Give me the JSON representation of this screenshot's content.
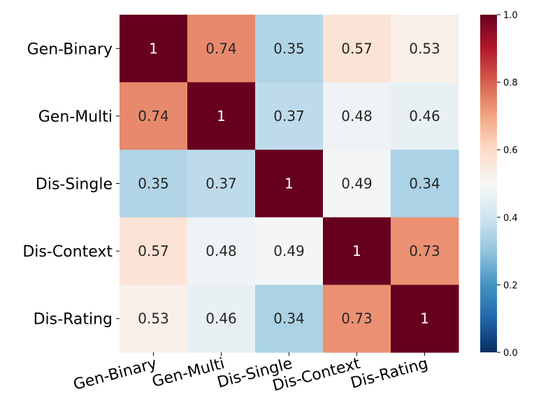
{
  "chart_data": {
    "type": "heatmap",
    "row_labels": [
      "Gen-Binary",
      "Gen-Multi",
      "Dis-Single",
      "Dis-Context",
      "Dis-Rating"
    ],
    "col_labels": [
      "Gen-Binary",
      "Gen-Multi",
      "Dis-Single",
      "Dis-Context",
      "Dis-Rating"
    ],
    "values": [
      [
        1,
        0.74,
        0.35,
        0.57,
        0.53
      ],
      [
        0.74,
        1,
        0.37,
        0.48,
        0.46
      ],
      [
        0.35,
        0.37,
        1,
        0.49,
        0.34
      ],
      [
        0.57,
        0.48,
        0.49,
        1,
        0.73
      ],
      [
        0.53,
        0.46,
        0.34,
        0.73,
        1
      ]
    ],
    "cell_labels": [
      [
        "1",
        "0.74",
        "0.35",
        "0.57",
        "0.53"
      ],
      [
        "0.74",
        "1",
        "0.37",
        "0.48",
        "0.46"
      ],
      [
        "0.35",
        "0.37",
        "1",
        "0.49",
        "0.34"
      ],
      [
        "0.57",
        "0.48",
        "0.49",
        "1",
        "0.73"
      ],
      [
        "0.53",
        "0.46",
        "0.34",
        "0.73",
        "1"
      ]
    ],
    "colorbar": {
      "vmin": 0.0,
      "vmax": 1.0,
      "ticks": [
        0.0,
        0.2,
        0.4,
        0.6,
        0.8,
        1.0
      ],
      "tick_labels": [
        "0.0",
        "0.2",
        "0.4",
        "0.6",
        "0.8",
        "1.0"
      ],
      "colormap": "RdBu_r"
    },
    "title": "",
    "xlabel": "",
    "ylabel": ""
  }
}
